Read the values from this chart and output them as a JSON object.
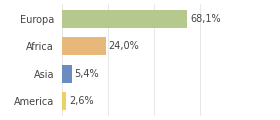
{
  "categories": [
    "Europa",
    "Africa",
    "Asia",
    "America"
  ],
  "values": [
    68.1,
    24.0,
    5.4,
    2.6
  ],
  "labels": [
    "68,1%",
    "24,0%",
    "5,4%",
    "2,6%"
  ],
  "bar_colors": [
    "#b5c98e",
    "#e8b87a",
    "#6b8cbf",
    "#f0d060"
  ],
  "background_color": "#ffffff",
  "xlim": [
    0,
    100
  ],
  "label_fontsize": 7.0,
  "tick_fontsize": 7.0,
  "grid_color": "#dddddd",
  "grid_positions": [
    0,
    25,
    50,
    75,
    100
  ]
}
